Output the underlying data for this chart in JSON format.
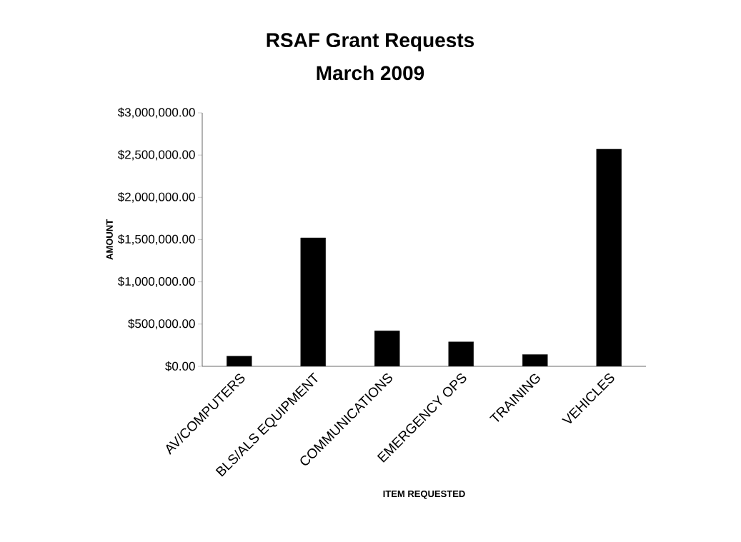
{
  "chart_data": {
    "type": "bar",
    "title": "RSAF Grant Requests",
    "subtitle": "March 2009",
    "xlabel": "ITEM REQUESTED",
    "ylabel": "AMOUNT",
    "categories": [
      "AV/COMPUTERS",
      "BLS/ALS EQUIPMENT",
      "COMMUNICATIONS",
      "EMERGENCY OPS",
      "TRAINING",
      "VEHICLES"
    ],
    "values": [
      120000,
      1520000,
      420000,
      290000,
      140000,
      2570000
    ],
    "color": "#000000",
    "ylim": [
      0,
      3000000
    ],
    "yticks": [
      {
        "value": 0,
        "label": "$0.00"
      },
      {
        "value": 500000,
        "label": "$500,000.00"
      },
      {
        "value": 1000000,
        "label": "$1,000,000.00"
      },
      {
        "value": 1500000,
        "label": "$1,500,000.00"
      },
      {
        "value": 2000000,
        "label": "$2,000,000.00"
      },
      {
        "value": 2500000,
        "label": "$2,500,000.00"
      },
      {
        "value": 3000000,
        "label": "$3,000,000.00"
      }
    ],
    "grid": false
  }
}
